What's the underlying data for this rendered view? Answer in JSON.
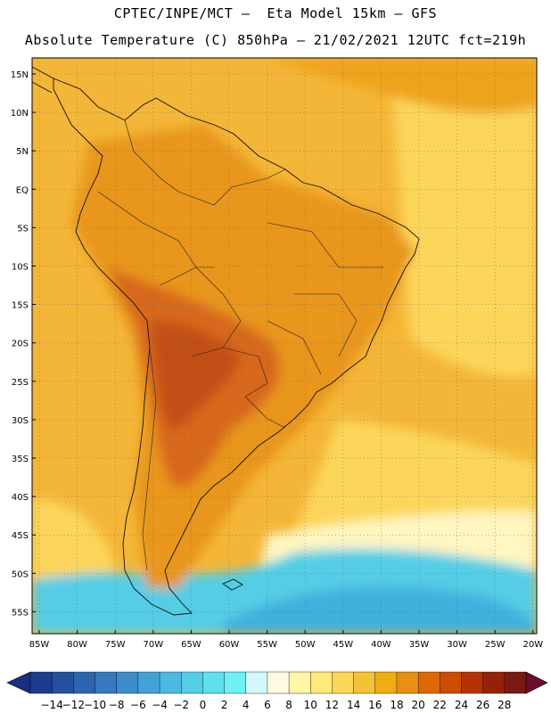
{
  "title_line1": "CPTEC/INPE/MCT –  Eta Model 15km – GFS",
  "title_line2": "Absolute Temperature (C) 850hPa – 21/02/2021 12UTC fct=219h",
  "lat_labels": [
    "15N",
    "10N",
    "5N",
    "EQ",
    "5S",
    "10S",
    "15S",
    "20S",
    "25S",
    "30S",
    "35S",
    "40S",
    "45S",
    "50S",
    "55S"
  ],
  "lon_labels": [
    "85W",
    "80W",
    "75W",
    "70W",
    "65W",
    "60W",
    "55W",
    "50W",
    "45W",
    "40W",
    "35W",
    "30W",
    "25W",
    "20W"
  ],
  "colorbar": {
    "labels": [
      "-14",
      "-12",
      "-10",
      "-8",
      "-6",
      "-4",
      "-2",
      "0",
      "2",
      "4",
      "6",
      "8",
      "10",
      "12",
      "14",
      "16",
      "18",
      "20",
      "22",
      "24",
      "26",
      "28"
    ],
    "colors": [
      "#1d3b8f",
      "#24509e",
      "#2e65b0",
      "#3878be",
      "#3f8cca",
      "#44a1d6",
      "#4db8e0",
      "#55cde6",
      "#5fe0ea",
      "#6ff0f2",
      "#d6f7fb",
      "#fffbe3",
      "#fff6a8",
      "#ffe97a",
      "#fbd65a",
      "#f4c238",
      "#eead14",
      "#e98f14",
      "#de6806",
      "#cc4b05",
      "#b43306",
      "#962108",
      "#7a1a14"
    ],
    "low_arrow_color": "#1a2f80",
    "high_arrow_color": "#6b0d2a"
  },
  "palette": {
    "ocean_warm": "#f4b638",
    "ocean_warmer": "#eea31c",
    "cool_yellow": "#fbd65a",
    "pale": "#fff6c0",
    "cyan": "#55cde6",
    "deep_cyan": "#3fb0dc",
    "land": "#e8961a",
    "hot": "#d8681a",
    "hotter": "#c24f12"
  }
}
